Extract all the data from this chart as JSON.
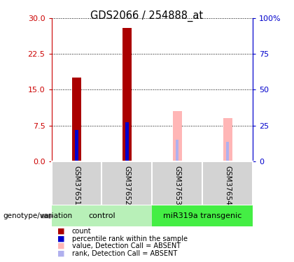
{
  "title": "GDS2066 / 254888_at",
  "samples": [
    "GSM37651",
    "GSM37652",
    "GSM37653",
    "GSM37654"
  ],
  "count_values": [
    17.5,
    28.0,
    null,
    null
  ],
  "rank_values": [
    6.5,
    8.2,
    null,
    null
  ],
  "absent_value": [
    null,
    null,
    10.5,
    9.0
  ],
  "absent_rank": [
    null,
    null,
    4.5,
    4.0
  ],
  "ylim_left": [
    0,
    30
  ],
  "ylim_right": [
    0,
    100
  ],
  "yticks_left": [
    0,
    7.5,
    15,
    22.5,
    30
  ],
  "yticks_right": [
    0,
    25,
    50,
    75,
    100
  ],
  "bar_width": 0.18,
  "rank_bar_width": 0.06,
  "count_color": "#aa0000",
  "rank_color": "#0000cc",
  "absent_value_color": "#ffb6b6",
  "absent_rank_color": "#b0b0ee",
  "legend_items": [
    {
      "label": "count",
      "color": "#aa0000"
    },
    {
      "label": "percentile rank within the sample",
      "color": "#0000cc"
    },
    {
      "label": "value, Detection Call = ABSENT",
      "color": "#ffb6b6"
    },
    {
      "label": "rank, Detection Call = ABSENT",
      "color": "#b0b0ee"
    }
  ],
  "left_axis_color": "#cc0000",
  "right_axis_color": "#0000cc",
  "xlabel": "genotype/variation",
  "bg_color": "#d3d3d3",
  "group_light_green": "#b8f0b8",
  "group_green": "#44ee44"
}
